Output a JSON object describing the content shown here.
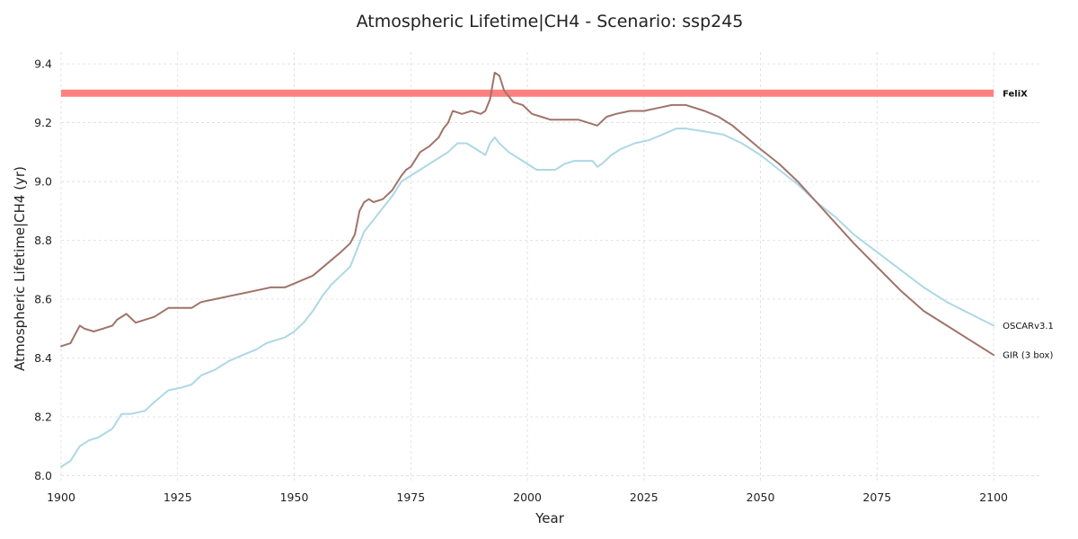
{
  "chart_data": {
    "type": "line",
    "title": "Atmospheric Lifetime|CH4 - Scenario: ssp245",
    "xlabel": "Year",
    "ylabel": "Atmospheric Lifetime|CH4 (yr)",
    "xlim": [
      1900,
      2110
    ],
    "ylim": [
      7.98,
      9.44
    ],
    "xticks": [
      1900,
      1925,
      1950,
      1975,
      2000,
      2025,
      2050,
      2075,
      2100
    ],
    "yticks": [
      8.0,
      8.2,
      8.4,
      8.6,
      8.8,
      9.0,
      9.2,
      9.4
    ],
    "grid": true,
    "legend": "labels at line ends",
    "series": [
      {
        "name": "FeliX",
        "color": "#ff8080",
        "x": [
          1900,
          2100
        ],
        "y": [
          9.3,
          9.3
        ]
      },
      {
        "name": "OSCARv3.1",
        "color": "#add8e6",
        "x": [
          1900,
          1902,
          1904,
          1906,
          1908,
          1911,
          1913,
          1915,
          1918,
          1920,
          1923,
          1926,
          1928,
          1930,
          1933,
          1936,
          1939,
          1942,
          1944,
          1946,
          1948,
          1950,
          1952,
          1954,
          1956,
          1958,
          1960,
          1962,
          1963,
          1965,
          1967,
          1969,
          1971,
          1973,
          1975,
          1977,
          1979,
          1981,
          1983,
          1985,
          1987,
          1989,
          1991,
          1992,
          1993,
          1994,
          1996,
          1998,
          2000,
          2002,
          2004,
          2006,
          2008,
          2010,
          2012,
          2013,
          2014,
          2015,
          2016,
          2018,
          2020,
          2023,
          2026,
          2029,
          2032,
          2034,
          2038,
          2042,
          2046,
          2050,
          2054,
          2058,
          2062,
          2066,
          2070,
          2075,
          2080,
          2085,
          2090,
          2095,
          2100
        ],
        "y": [
          8.03,
          8.05,
          8.1,
          8.12,
          8.13,
          8.16,
          8.21,
          8.21,
          8.22,
          8.25,
          8.29,
          8.3,
          8.31,
          8.34,
          8.36,
          8.39,
          8.41,
          8.43,
          8.45,
          8.46,
          8.47,
          8.49,
          8.52,
          8.56,
          8.61,
          8.65,
          8.68,
          8.71,
          8.75,
          8.83,
          8.87,
          8.91,
          8.95,
          9.0,
          9.02,
          9.04,
          9.06,
          9.08,
          9.1,
          9.13,
          9.13,
          9.11,
          9.09,
          9.13,
          9.15,
          9.13,
          9.1,
          9.08,
          9.06,
          9.04,
          9.04,
          9.04,
          9.06,
          9.07,
          9.07,
          9.07,
          9.07,
          9.05,
          9.06,
          9.09,
          9.11,
          9.13,
          9.14,
          9.16,
          9.18,
          9.18,
          9.17,
          9.16,
          9.13,
          9.09,
          9.04,
          8.99,
          8.93,
          8.88,
          8.82,
          8.76,
          8.7,
          8.64,
          8.59,
          8.55,
          8.51
        ]
      },
      {
        "name": "GIR (3 box)",
        "color": "#a0746a",
        "x": [
          1900,
          1902,
          1903,
          1904,
          1905,
          1907,
          1909,
          1911,
          1912,
          1914,
          1916,
          1918,
          1920,
          1923,
          1926,
          1928,
          1930,
          1933,
          1936,
          1939,
          1942,
          1945,
          1948,
          1951,
          1954,
          1957,
          1960,
          1962,
          1963,
          1964,
          1965,
          1966,
          1967,
          1969,
          1971,
          1973,
          1974,
          1975,
          1977,
          1979,
          1981,
          1982,
          1983,
          1984,
          1986,
          1988,
          1990,
          1991,
          1992,
          1993,
          1994,
          1995,
          1997,
          1999,
          2001,
          2003,
          2005,
          2007,
          2009,
          2011,
          2013,
          2015,
          2017,
          2019,
          2022,
          2025,
          2028,
          2031,
          2034,
          2038,
          2041,
          2044,
          2047,
          2050,
          2054,
          2058,
          2062,
          2066,
          2070,
          2075,
          2080,
          2085,
          2090,
          2095,
          2100
        ],
        "y": [
          8.44,
          8.45,
          8.48,
          8.51,
          8.5,
          8.49,
          8.5,
          8.51,
          8.53,
          8.55,
          8.52,
          8.53,
          8.54,
          8.57,
          8.57,
          8.57,
          8.59,
          8.6,
          8.61,
          8.62,
          8.63,
          8.64,
          8.64,
          8.66,
          8.68,
          8.72,
          8.76,
          8.79,
          8.82,
          8.9,
          8.93,
          8.94,
          8.93,
          8.94,
          8.97,
          9.02,
          9.04,
          9.05,
          9.1,
          9.12,
          9.15,
          9.18,
          9.2,
          9.24,
          9.23,
          9.24,
          9.23,
          9.24,
          9.28,
          9.37,
          9.36,
          9.31,
          9.27,
          9.26,
          9.23,
          9.22,
          9.21,
          9.21,
          9.21,
          9.21,
          9.2,
          9.19,
          9.22,
          9.23,
          9.24,
          9.24,
          9.25,
          9.26,
          9.26,
          9.24,
          9.22,
          9.19,
          9.15,
          9.11,
          9.06,
          9.0,
          8.93,
          8.86,
          8.79,
          8.71,
          8.63,
          8.56,
          8.51,
          8.46,
          8.41
        ]
      }
    ]
  }
}
